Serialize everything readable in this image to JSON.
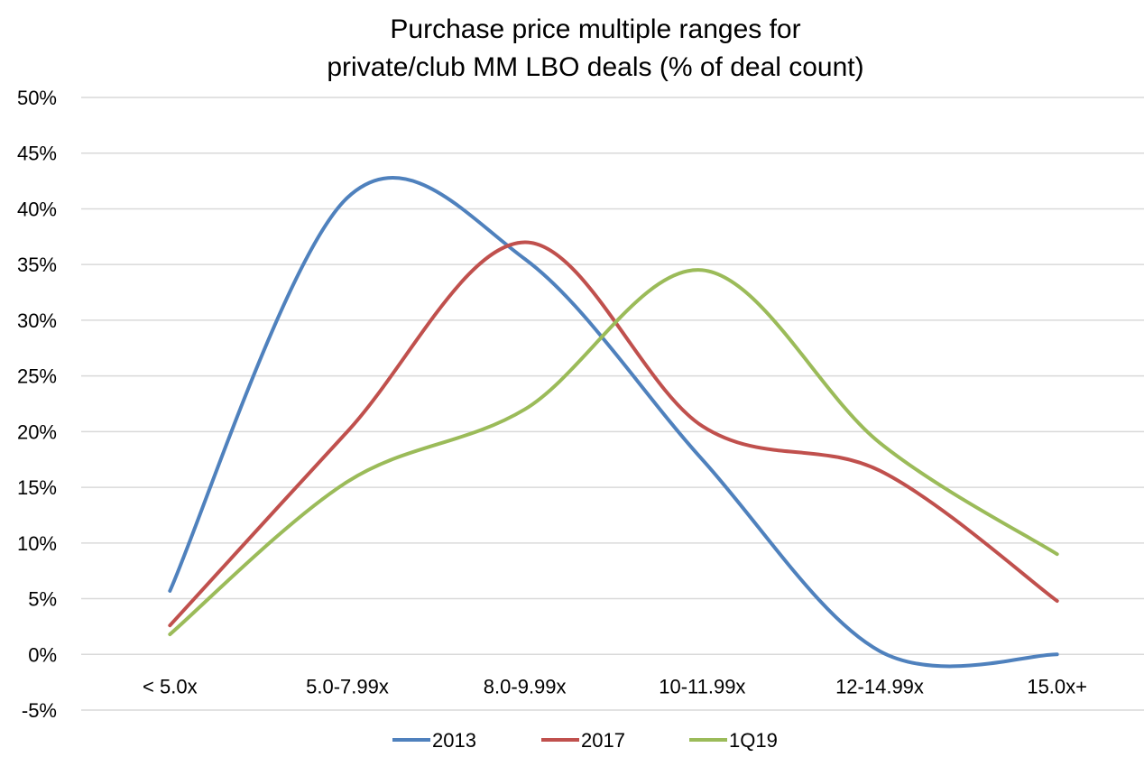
{
  "chart_data": {
    "type": "line",
    "title_lines": [
      "Purchase price multiple ranges for",
      "private/club MM LBO deals (% of deal count)"
    ],
    "xlabel": "",
    "ylabel": "",
    "categories": [
      "< 5.0x",
      "5.0-7.99x",
      "8.0-9.99x",
      "10-11.99x",
      "12-14.99x",
      "15.0x+"
    ],
    "ylim": [
      -5,
      50
    ],
    "yticks": [
      -5,
      0,
      5,
      10,
      15,
      20,
      25,
      30,
      35,
      40,
      45,
      50
    ],
    "ytick_labels": [
      "-5%",
      "0%",
      "5%",
      "10%",
      "15%",
      "20%",
      "25%",
      "30%",
      "35%",
      "40%",
      "45%",
      "50%"
    ],
    "grid": true,
    "smooth": true,
    "legend_position": "bottom",
    "series": [
      {
        "name": "2013",
        "color": "#4F81BD",
        "values": [
          5.7,
          41.0,
          35.5,
          17.5,
          0.3,
          0.0
        ]
      },
      {
        "name": "2017",
        "color": "#C0504D",
        "values": [
          2.6,
          20.0,
          37.0,
          20.5,
          16.5,
          4.8
        ]
      },
      {
        "name": "1Q19",
        "color": "#9BBB59",
        "values": [
          1.8,
          15.5,
          22.0,
          34.5,
          19.0,
          9.0
        ]
      }
    ]
  }
}
